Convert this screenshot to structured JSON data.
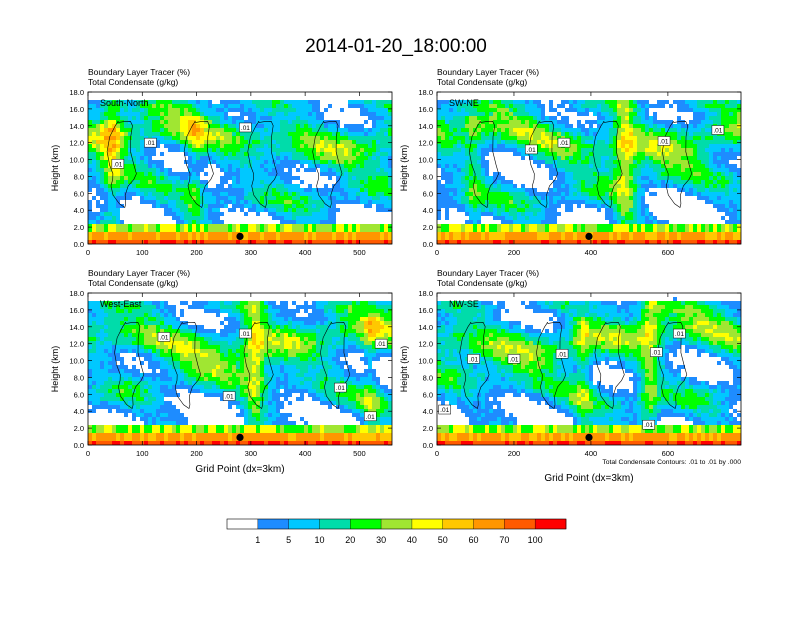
{
  "title": "2014-01-20_18:00:00",
  "chart_data": {
    "type": "heatmap",
    "title": "2014-01-20_18:00:00",
    "panels": [
      {
        "label": "South-North",
        "var_label_1": "Boundary Layer Tracer   (%)",
        "var_label_2": "Total Condensate   (g/kg)",
        "ylabel": "Height (km)",
        "xlabel": "",
        "xlim": [
          0,
          560
        ],
        "ylim": [
          0,
          18
        ],
        "xticks": [
          "0",
          "100",
          "200",
          "300",
          "400",
          "500"
        ],
        "yticks": [
          "0.0",
          "2.0",
          "4.0",
          "6.0",
          "8.0",
          "10.0",
          "12.0",
          "14.0",
          "16.0",
          "18.0"
        ],
        "marker_x": 280,
        "contour_labels": [
          {
            "text": ".01",
            "x": 55,
            "y": 9.5
          },
          {
            "text": ".01",
            "x": 115,
            "y": 12.0
          },
          {
            "text": ".01",
            "x": 290,
            "y": 13.8
          }
        ]
      },
      {
        "label": "SW-NE",
        "var_label_1": "Boundary Layer Tracer   (%)",
        "var_label_2": "Total Condensate   (g/kg)",
        "ylabel": "Height (km)",
        "xlabel": "",
        "xlim": [
          0,
          790
        ],
        "ylim": [
          0,
          18
        ],
        "xticks": [
          "0",
          "200",
          "400",
          "600"
        ],
        "yticks": [
          "0.0",
          "2.0",
          "4.0",
          "6.0",
          "8.0",
          "10.0",
          "12.0",
          "14.0",
          "16.0",
          "18.0"
        ],
        "marker_x": 395,
        "contour_labels": [
          {
            "text": ".01",
            "x": 245,
            "y": 11.2
          },
          {
            "text": ".01",
            "x": 330,
            "y": 12.0
          },
          {
            "text": ".01",
            "x": 590,
            "y": 12.2
          },
          {
            "text": ".01",
            "x": 730,
            "y": 13.5
          }
        ]
      },
      {
        "label": "West-East",
        "var_label_1": "Boundary Layer Tracer   (%)",
        "var_label_2": "Total Condensate   (g/kg)",
        "ylabel": "Height (km)",
        "xlabel": "Grid Point (dx=3km)",
        "xlim": [
          0,
          560
        ],
        "ylim": [
          0,
          18
        ],
        "xticks": [
          "0",
          "100",
          "200",
          "300",
          "400",
          "500"
        ],
        "yticks": [
          "0.0",
          "2.0",
          "4.0",
          "6.0",
          "8.0",
          "10.0",
          "12.0",
          "14.0",
          "16.0",
          "18.0"
        ],
        "marker_x": 280,
        "contour_labels": [
          {
            "text": ".01",
            "x": 140,
            "y": 12.8
          },
          {
            "text": ".01",
            "x": 290,
            "y": 13.2
          },
          {
            "text": ".01",
            "x": 540,
            "y": 12.0
          },
          {
            "text": ".01",
            "x": 260,
            "y": 5.8
          },
          {
            "text": ".01",
            "x": 465,
            "y": 6.8
          },
          {
            "text": ".01",
            "x": 520,
            "y": 3.4
          }
        ]
      },
      {
        "label": "NW-SE",
        "var_label_1": "Boundary Layer Tracer   (%)",
        "var_label_2": "Total Condensate   (g/kg)",
        "ylabel": "Height (km)",
        "xlabel": "Grid Point (dx=3km)",
        "xlim": [
          0,
          790
        ],
        "ylim": [
          0,
          18
        ],
        "xticks": [
          "0",
          "200",
          "400",
          "600"
        ],
        "yticks": [
          "0.0",
          "2.0",
          "4.0",
          "6.0",
          "8.0",
          "10.0",
          "12.0",
          "14.0",
          "16.0",
          "18.0"
        ],
        "marker_x": 395,
        "contour_labels": [
          {
            "text": ".01",
            "x": 95,
            "y": 10.2
          },
          {
            "text": ".01",
            "x": 200,
            "y": 10.2
          },
          {
            "text": ".01",
            "x": 325,
            "y": 10.8
          },
          {
            "text": ".01",
            "x": 570,
            "y": 11.0
          },
          {
            "text": ".01",
            "x": 630,
            "y": 13.2
          },
          {
            "text": ".01",
            "x": 20,
            "y": 4.2
          },
          {
            "text": ".01",
            "x": 550,
            "y": 2.4
          }
        ],
        "footnote": "Total Condensate Contours: .01 to .01 by .000"
      }
    ],
    "colorbar": {
      "levels": [
        "1",
        "5",
        "10",
        "20",
        "30",
        "40",
        "50",
        "60",
        "70",
        "100"
      ],
      "colors": [
        "#ffffff",
        "#1e8cff",
        "#00c8ff",
        "#00dcaa",
        "#00ff00",
        "#a0e632",
        "#ffff00",
        "#ffc800",
        "#ff9600",
        "#ff5a00",
        "#ff0000"
      ]
    },
    "grid": false
  }
}
